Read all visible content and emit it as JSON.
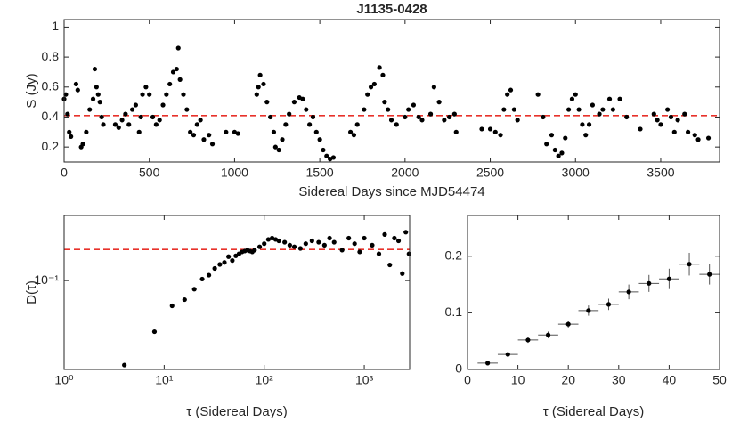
{
  "chart_data": [
    {
      "type": "scatter",
      "title": "J1135-0428",
      "xlabel": "Sidereal Days since MJD54474",
      "ylabel": "S (Jy)",
      "x": [
        0,
        10,
        20,
        30,
        40,
        70,
        80,
        100,
        110,
        130,
        150,
        170,
        180,
        190,
        200,
        210,
        220,
        230,
        300,
        320,
        340,
        360,
        380,
        400,
        420,
        440,
        450,
        460,
        480,
        500,
        520,
        540,
        560,
        580,
        600,
        620,
        640,
        660,
        670,
        680,
        700,
        720,
        740,
        760,
        780,
        800,
        820,
        850,
        870,
        950,
        1000,
        1020,
        1130,
        1140,
        1150,
        1170,
        1190,
        1210,
        1230,
        1240,
        1260,
        1280,
        1300,
        1320,
        1350,
        1380,
        1400,
        1420,
        1440,
        1460,
        1480,
        1500,
        1520,
        1540,
        1560,
        1580,
        1680,
        1700,
        1720,
        1760,
        1780,
        1800,
        1820,
        1850,
        1870,
        1880,
        1900,
        1920,
        1950,
        2000,
        2020,
        2050,
        2080,
        2100,
        2150,
        2170,
        2200,
        2230,
        2260,
        2290,
        2300,
        2450,
        2500,
        2530,
        2560,
        2580,
        2600,
        2620,
        2640,
        2660,
        2780,
        2810,
        2830,
        2860,
        2880,
        2900,
        2920,
        2940,
        2960,
        2980,
        3000,
        3020,
        3040,
        3060,
        3080,
        3100,
        3140,
        3160,
        3200,
        3220,
        3260,
        3300,
        3380,
        3460,
        3480,
        3500,
        3540,
        3560,
        3580,
        3600,
        3640,
        3660,
        3700,
        3720,
        3780
      ],
      "values": [
        0.52,
        0.55,
        0.42,
        0.3,
        0.27,
        0.62,
        0.58,
        0.2,
        0.22,
        0.3,
        0.45,
        0.52,
        0.72,
        0.6,
        0.55,
        0.5,
        0.4,
        0.35,
        0.35,
        0.33,
        0.38,
        0.42,
        0.35,
        0.45,
        0.48,
        0.3,
        0.4,
        0.55,
        0.6,
        0.55,
        0.4,
        0.35,
        0.38,
        0.48,
        0.55,
        0.62,
        0.7,
        0.72,
        0.86,
        0.65,
        0.55,
        0.45,
        0.3,
        0.28,
        0.35,
        0.38,
        0.25,
        0.28,
        0.22,
        0.3,
        0.3,
        0.29,
        0.55,
        0.6,
        0.68,
        0.62,
        0.5,
        0.4,
        0.3,
        0.2,
        0.18,
        0.25,
        0.35,
        0.42,
        0.5,
        0.53,
        0.52,
        0.45,
        0.35,
        0.4,
        0.3,
        0.25,
        0.18,
        0.14,
        0.12,
        0.13,
        0.3,
        0.28,
        0.35,
        0.45,
        0.55,
        0.6,
        0.62,
        0.73,
        0.68,
        0.5,
        0.45,
        0.38,
        0.35,
        0.4,
        0.45,
        0.48,
        0.4,
        0.38,
        0.42,
        0.6,
        0.5,
        0.38,
        0.4,
        0.42,
        0.3,
        0.32,
        0.32,
        0.3,
        0.28,
        0.45,
        0.55,
        0.58,
        0.45,
        0.38,
        0.55,
        0.4,
        0.22,
        0.28,
        0.18,
        0.14,
        0.16,
        0.26,
        0.45,
        0.52,
        0.55,
        0.45,
        0.35,
        0.28,
        0.35,
        0.48,
        0.42,
        0.45,
        0.52,
        0.45,
        0.52,
        0.4,
        0.32,
        0.42,
        0.38,
        0.35,
        0.45,
        0.4,
        0.3,
        0.38,
        0.42,
        0.3,
        0.28,
        0.25,
        0.26
      ],
      "color": "#000000",
      "reference_line": {
        "value": 0.41,
        "color": "#e8322a"
      },
      "xlim": [
        0,
        3845
      ],
      "ylim": [
        0.1,
        1.05
      ],
      "xticks": [
        0,
        500,
        1000,
        1500,
        2000,
        2500,
        3000,
        3500
      ],
      "yticks": [
        0.2,
        0.4,
        0.6,
        0.8,
        1
      ]
    },
    {
      "type": "scatter",
      "xlabel": "τ (Sidereal Days)",
      "ylabel": "D(τ)",
      "xscale": "log",
      "yscale": "log",
      "x": [
        4,
        8,
        12,
        16,
        20,
        24,
        28,
        32,
        36,
        40,
        44,
        48,
        52,
        56,
        60,
        64,
        68,
        72,
        76,
        80,
        90,
        100,
        110,
        120,
        130,
        140,
        160,
        180,
        200,
        230,
        260,
        300,
        350,
        400,
        450,
        500,
        600,
        700,
        800,
        900,
        1000,
        1200,
        1400,
        1600,
        1800,
        2000,
        2200,
        2400,
        2600,
        2800
      ],
      "values": [
        0.0112,
        0.0266,
        0.052,
        0.061,
        0.08,
        0.104,
        0.115,
        0.137,
        0.152,
        0.16,
        0.186,
        0.168,
        0.19,
        0.2,
        0.21,
        0.215,
        0.22,
        0.215,
        0.21,
        0.22,
        0.24,
        0.26,
        0.29,
        0.3,
        0.29,
        0.28,
        0.27,
        0.25,
        0.24,
        0.23,
        0.26,
        0.28,
        0.27,
        0.25,
        0.3,
        0.27,
        0.22,
        0.3,
        0.26,
        0.21,
        0.3,
        0.25,
        0.2,
        0.33,
        0.15,
        0.3,
        0.28,
        0.12,
        0.35,
        0.2
      ],
      "color": "#000000",
      "reference_line": {
        "value": 0.224,
        "color": "#e8322a"
      },
      "xlim": [
        1,
        2840
      ],
      "ylim": [
        0.01,
        0.54
      ],
      "xticks": [
        {
          "value": 1,
          "label": "10⁰"
        },
        {
          "value": 10,
          "label": "10¹"
        },
        {
          "value": 100,
          "label": "10²"
        },
        {
          "value": 1000,
          "label": "10³"
        }
      ],
      "yticks": [
        {
          "value": 0.1,
          "label": "10⁻¹"
        }
      ]
    },
    {
      "type": "errorbar",
      "xlabel": "τ (Sidereal Days)",
      "x": [
        4,
        8,
        12,
        16,
        20,
        24,
        28,
        32,
        36,
        40,
        44,
        48
      ],
      "values": [
        0.0112,
        0.0266,
        0.052,
        0.061,
        0.08,
        0.104,
        0.115,
        0.137,
        0.152,
        0.16,
        0.186,
        0.168
      ],
      "xerr": [
        2,
        2,
        2,
        2,
        2,
        2,
        2,
        2,
        2,
        2,
        2,
        2
      ],
      "yerr": [
        0.002,
        0.003,
        0.005,
        0.006,
        0.006,
        0.009,
        0.01,
        0.013,
        0.015,
        0.018,
        0.02,
        0.018
      ],
      "color": "#000000",
      "xlim": [
        0,
        50
      ],
      "ylim": [
        0,
        0.272
      ],
      "xticks": [
        0,
        10,
        20,
        30,
        40,
        50
      ],
      "yticks": [
        0,
        0.1,
        0.2
      ]
    }
  ]
}
